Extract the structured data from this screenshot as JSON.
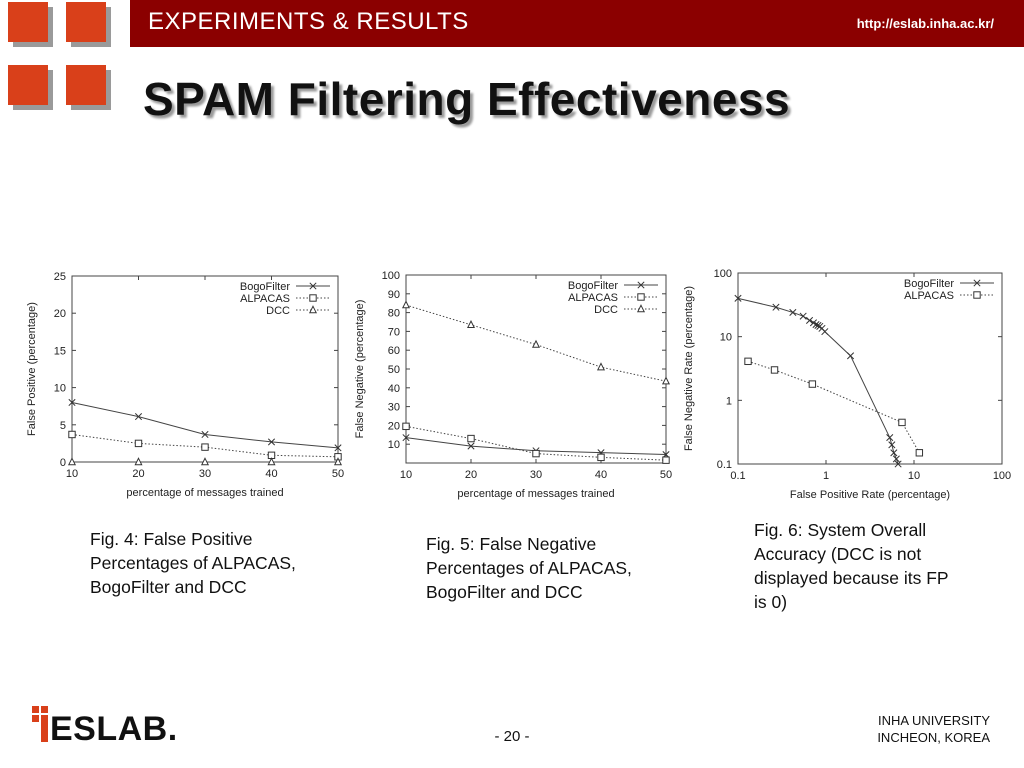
{
  "header": {
    "title": "EXPERIMENTS & RESULTS",
    "url": "http://eslab.inha.ac.kr/"
  },
  "slide_title": "SPAM Filtering Effectiveness",
  "captions": {
    "fig4": [
      "Fig. 4: False Positive",
      "Percentages of ALPACAS,",
      "BogoFilter and DCC"
    ],
    "fig5": [
      "Fig. 5: False Negative",
      "Percentages of ALPACAS,",
      "BogoFilter and DCC"
    ],
    "fig6": [
      "Fig. 6: System Overall",
      "Accuracy (DCC is not",
      "displayed because its FP",
      "is 0)"
    ]
  },
  "footer": {
    "logo_text": "ESLAB.",
    "page_number": "- 20 -",
    "university_line1": "INHA UNIVERSITY",
    "university_line2": "INCHEON, KOREA"
  },
  "chart_data": [
    {
      "type": "line",
      "xlabel": "percentage of messages trained",
      "ylabel": "False Positive (percentage)",
      "xlim": [
        10,
        50
      ],
      "ylim": [
        0,
        25
      ],
      "xticks": [
        10,
        20,
        30,
        40,
        50
      ],
      "yticks": [
        0,
        5,
        10,
        15,
        20,
        25
      ],
      "legend_position": "top-right",
      "grid": false,
      "series": [
        {
          "name": "BogoFilter",
          "marker": "x",
          "dash": "",
          "x": [
            10,
            20,
            30,
            40,
            50
          ],
          "y": [
            8,
            6.1,
            3.7,
            2.7,
            1.9
          ]
        },
        {
          "name": "ALPACAS",
          "marker": "square",
          "dash": "1.5,2",
          "x": [
            10,
            20,
            30,
            40,
            50
          ],
          "y": [
            3.7,
            2.5,
            2,
            0.9,
            0.7
          ]
        },
        {
          "name": "DCC",
          "marker": "triangle",
          "dash": "1.5,2",
          "x": [
            10,
            20,
            30,
            40,
            50
          ],
          "y": [
            0,
            0,
            0,
            0,
            0
          ]
        }
      ]
    },
    {
      "type": "line",
      "xlabel": "percentage of messages trained",
      "ylabel": "False Negative (percentage)",
      "xlim": [
        10,
        50
      ],
      "ylim": [
        0,
        100
      ],
      "xticks": [
        10,
        20,
        30,
        40,
        50
      ],
      "yticks": [
        10,
        20,
        30,
        40,
        50,
        60,
        70,
        80,
        90,
        100
      ],
      "legend_position": "top-right",
      "grid": false,
      "series": [
        {
          "name": "BogoFilter",
          "marker": "x",
          "dash": "",
          "x": [
            10,
            20,
            30,
            40,
            50
          ],
          "y": [
            13.5,
            9,
            6.5,
            5.5,
            4.5
          ]
        },
        {
          "name": "ALPACAS",
          "marker": "square",
          "dash": "1.5,2",
          "x": [
            10,
            20,
            30,
            40,
            50
          ],
          "y": [
            19.5,
            13,
            5,
            3,
            1.5
          ]
        },
        {
          "name": "DCC",
          "marker": "triangle",
          "dash": "1.5,2",
          "x": [
            10,
            20,
            30,
            40,
            50
          ],
          "y": [
            84,
            73.5,
            63,
            51,
            43.5
          ]
        }
      ]
    },
    {
      "type": "line",
      "xscale": "log",
      "yscale": "log",
      "xlabel": "False Positive Rate (percentage)",
      "ylabel": "False Negative Rate (percentage)",
      "xlim": [
        0.1,
        100
      ],
      "ylim": [
        0.1,
        100
      ],
      "xticks": [
        0.1,
        1,
        10,
        100
      ],
      "yticks": [
        0.1,
        1,
        10,
        100
      ],
      "xtick_labels": [
        "0.1",
        "1",
        "10",
        "100"
      ],
      "ytick_labels": [
        "0.1",
        "1",
        "10",
        "100"
      ],
      "legend_position": "top-right",
      "grid": false,
      "series": [
        {
          "name": "BogoFilter",
          "marker": "x",
          "dash": "",
          "x": [
            0.1,
            0.27,
            0.42,
            0.55,
            0.65,
            0.72,
            0.77,
            0.81,
            0.85,
            0.9,
            0.97,
            1.9,
            5.3,
            5.6,
            5.9,
            6.3,
            6.6
          ],
          "y": [
            40,
            29,
            24,
            21,
            18,
            16.5,
            15.5,
            15,
            14.5,
            13.5,
            12,
            5,
            0.26,
            0.2,
            0.15,
            0.12,
            0.1
          ]
        },
        {
          "name": "ALPACAS",
          "marker": "square",
          "dash": "1.5,2",
          "x": [
            0.13,
            0.26,
            0.7,
            7.3,
            11.5
          ],
          "y": [
            4.1,
            3.0,
            1.8,
            0.45,
            0.15
          ]
        }
      ]
    }
  ]
}
